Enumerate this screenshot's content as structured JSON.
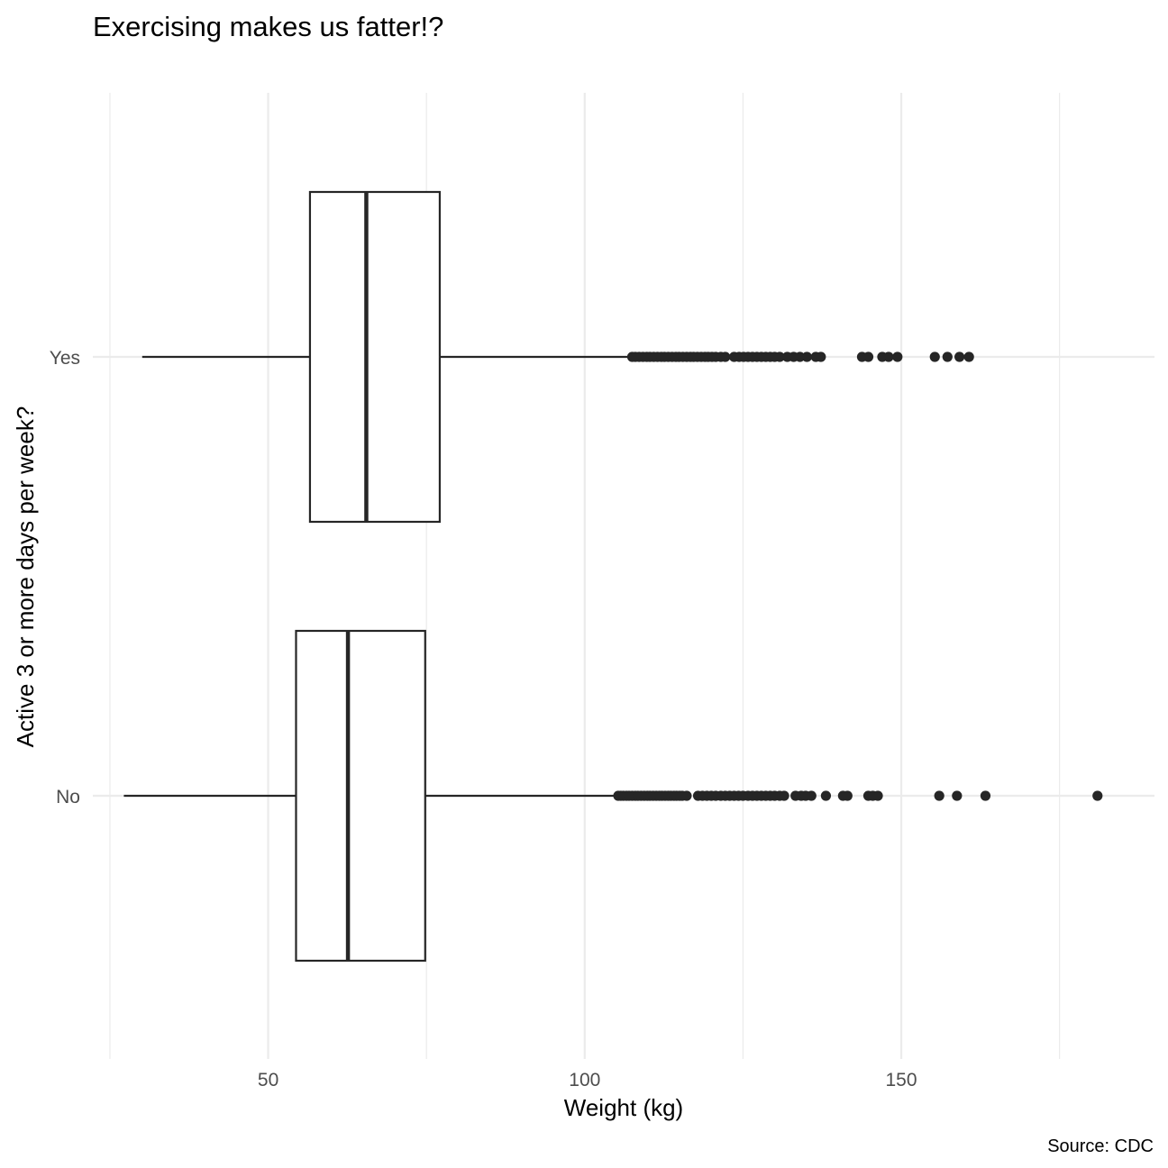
{
  "chart_data": {
    "type": "boxplot",
    "orientation": "horizontal",
    "title": "Exercising makes us fatter!?",
    "xlabel": "Weight (kg)",
    "ylabel": "Active 3 or more days per week?",
    "caption": "Source: CDC",
    "xlim": [
      22.3,
      190
    ],
    "x_ticks": [
      50,
      100,
      150
    ],
    "x_tick_labels": [
      "50",
      "100",
      "150"
    ],
    "categories": [
      "No",
      "Yes"
    ],
    "grid": true,
    "legend": "none",
    "box_color": "#262626",
    "point_color": "#262626",
    "series": [
      {
        "name": "No",
        "whisker_low": 27.2,
        "q1": 54.4,
        "median": 62.6,
        "q3": 74.8,
        "whisker_high": 105.2,
        "outliers": [
          105.3,
          105.7,
          106.1,
          106.6,
          107.0,
          107.5,
          108.0,
          108.4,
          108.9,
          109.4,
          109.9,
          110.3,
          110.8,
          111.3,
          111.8,
          112.2,
          112.7,
          113.2,
          113.6,
          114.1,
          114.5,
          115.0,
          115.4,
          116.1,
          117.9,
          118.6,
          119.3,
          120.0,
          120.7,
          121.5,
          122.2,
          122.9,
          123.6,
          124.3,
          125.0,
          125.8,
          126.5,
          127.2,
          127.9,
          128.6,
          129.3,
          130.0,
          130.8,
          131.5,
          133.3,
          134.2,
          134.9,
          135.8,
          138.1,
          140.8,
          141.5,
          144.8,
          145.5,
          146.3,
          156.0,
          158.8,
          163.3,
          181.0
        ]
      },
      {
        "name": "Yes",
        "whisker_low": 30.1,
        "q1": 56.6,
        "median": 65.5,
        "q3": 77.1,
        "whisker_high": 107.4,
        "outliers": [
          107.5,
          108.0,
          108.6,
          109.2,
          109.8,
          110.3,
          110.9,
          111.5,
          112.1,
          112.6,
          113.2,
          113.8,
          114.4,
          114.9,
          115.5,
          116.1,
          116.7,
          117.2,
          117.8,
          118.4,
          119.0,
          119.5,
          120.1,
          120.7,
          121.5,
          122.2,
          123.6,
          124.4,
          125.1,
          125.8,
          126.5,
          127.2,
          127.9,
          128.6,
          129.3,
          130.0,
          130.8,
          132.0,
          133.0,
          134.0,
          135.1,
          136.5,
          137.3,
          143.8,
          144.8,
          147.0,
          148.0,
          149.4,
          155.3,
          157.3,
          159.2,
          160.7
        ]
      }
    ]
  }
}
